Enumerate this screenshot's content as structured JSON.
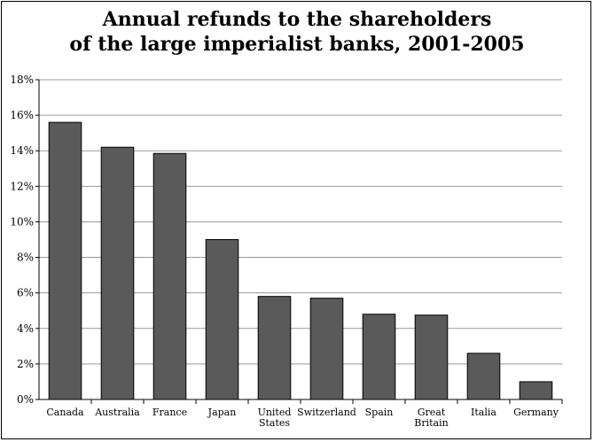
{
  "chart_data": {
    "type": "bar",
    "title_lines": [
      "Annual refunds to the shareholders",
      "of the large imperialist banks, 2001-2005"
    ],
    "categories": [
      [
        "Canada"
      ],
      [
        "Australia"
      ],
      [
        "France"
      ],
      [
        "Japan"
      ],
      [
        "United",
        "States"
      ],
      [
        "Switzerland"
      ],
      [
        "Spain"
      ],
      [
        "Great",
        "Britain"
      ],
      [
        "Italia"
      ],
      [
        "Germany"
      ]
    ],
    "values": [
      15.6,
      14.2,
      13.85,
      9.0,
      5.8,
      5.7,
      4.8,
      4.75,
      2.6,
      1.0
    ],
    "ylim": [
      0,
      18
    ],
    "yticks": [
      {
        "value": 0,
        "label": "0%"
      },
      {
        "value": 2,
        "label": "2%"
      },
      {
        "value": 4,
        "label": "4%"
      },
      {
        "value": 6,
        "label": "6%"
      },
      {
        "value": 8,
        "label": "8%"
      },
      {
        "value": 10,
        "label": "10%"
      },
      {
        "value": 12,
        "label": "12%"
      },
      {
        "value": 14,
        "label": "14%"
      },
      {
        "value": 16,
        "label": "16%"
      },
      {
        "value": 18,
        "label": "18%"
      }
    ],
    "grid": true,
    "bar_color": "#5a5a5a",
    "grid_color": "#999999"
  }
}
